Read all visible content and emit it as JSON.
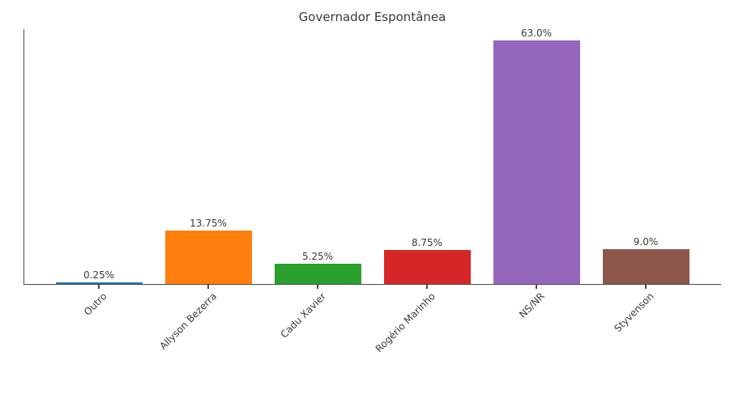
{
  "chart_data": {
    "type": "bar",
    "title": "Governador Espontânea",
    "categories": [
      "Outro",
      "Allyson Bezerra",
      "Cadu Xavier",
      "Rogério Marinho",
      "NS/NR",
      "Styvenson"
    ],
    "values": [
      0.25,
      13.75,
      5.25,
      8.75,
      63.0,
      9.0
    ],
    "value_labels": [
      "0.25%",
      "13.75%",
      "5.25%",
      "8.75%",
      "63.0%",
      "9.0%"
    ],
    "bar_colors": [
      "#1f77b4",
      "#ff7f0e",
      "#2ca02c",
      "#d62728",
      "#9467bd",
      "#8c564b"
    ],
    "xlabel": "",
    "ylabel": "",
    "ylim": [
      0,
      66.15
    ],
    "grid": false,
    "legend": null,
    "spine_color": "#4a4a4a"
  }
}
